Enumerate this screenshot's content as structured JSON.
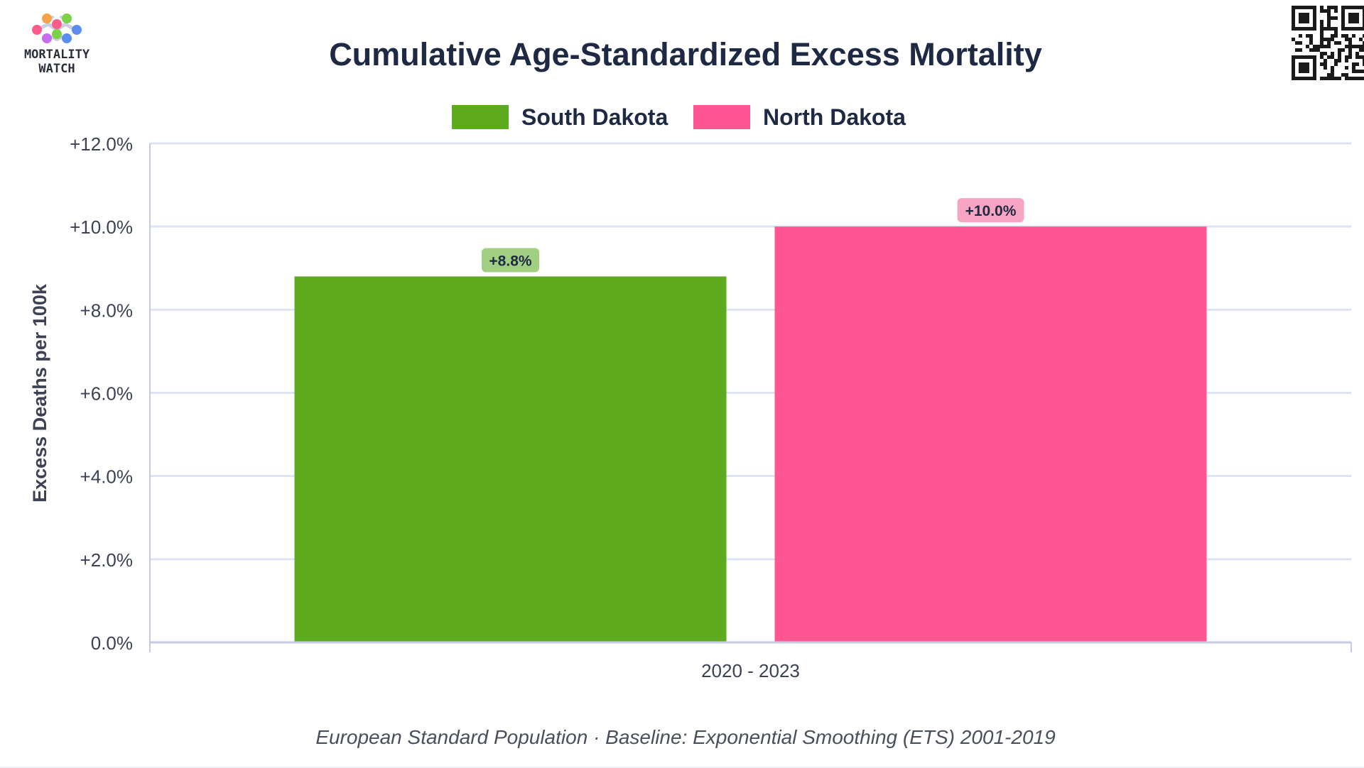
{
  "logo": {
    "line1": "MORTALITY",
    "line2": "WATCH",
    "dot_colors": [
      "#ff5a8c",
      "#f7a14a",
      "#7bd148",
      "#5b8def",
      "#c86bf0"
    ]
  },
  "footnote": "European Standard Population · Baseline: Exponential Smoothing (ETS) 2001-2019",
  "colors": {
    "south_dakota": "#5eab1f",
    "south_dakota_label_bg": "#a3cf83",
    "north_dakota": "#ff5591",
    "north_dakota_label_bg": "#f8a4c3",
    "title": "#1e2a44",
    "axis_text": "#3c4254",
    "grid": "#dde3f5",
    "axis_line": "#c5cbe3"
  },
  "chart_data": {
    "type": "bar",
    "title": "Cumulative Age-Standardized Excess Mortality",
    "xlabel": "",
    "ylabel": "Excess Deaths per 100k",
    "categories": [
      "2020 - 2023"
    ],
    "series": [
      {
        "name": "South Dakota",
        "values": [
          8.8
        ],
        "data_labels": [
          "+8.8%"
        ]
      },
      {
        "name": "North Dakota",
        "values": [
          10.0
        ],
        "data_labels": [
          "+10.0%"
        ]
      }
    ],
    "ylim": [
      0,
      12
    ],
    "yticks": [
      0,
      2,
      4,
      6,
      8,
      10,
      12
    ],
    "ytick_labels": [
      "0.0%",
      "+2.0%",
      "+4.0%",
      "+6.0%",
      "+8.0%",
      "+10.0%",
      "+12.0%"
    ],
    "grid": true,
    "legend_position": "top-center"
  }
}
